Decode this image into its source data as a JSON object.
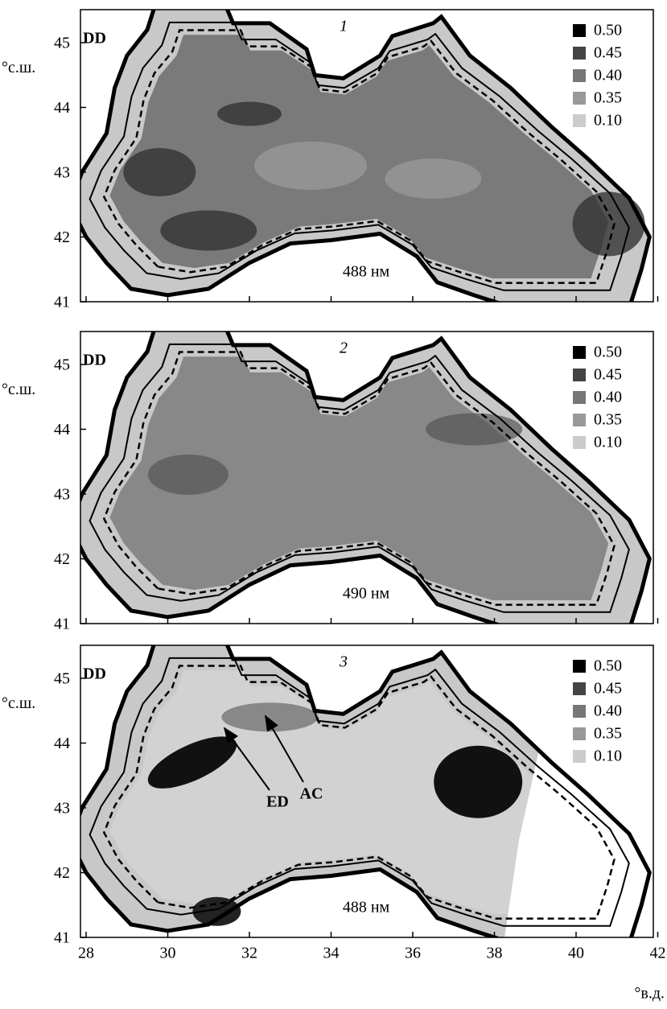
{
  "figure": {
    "y_axis_label": "°с.ш.",
    "x_axis_label": "°в.д.",
    "yticks": [
      "41",
      "42",
      "43",
      "44",
      "45"
    ],
    "xticks": [
      "28",
      "30",
      "32",
      "34",
      "36",
      "38",
      "40",
      "42"
    ],
    "legend": [
      "0.50",
      "0.45",
      "0.40",
      "0.35",
      "0.10"
    ],
    "panels": [
      {
        "number": "1",
        "region_label": "DD",
        "wavelength": "488 нм"
      },
      {
        "number": "2",
        "region_label": "DD",
        "wavelength": "490 нм"
      },
      {
        "number": "3",
        "region_label": "DD",
        "wavelength": "488 нм",
        "annotations": [
          "ED",
          "AC"
        ]
      }
    ]
  }
}
